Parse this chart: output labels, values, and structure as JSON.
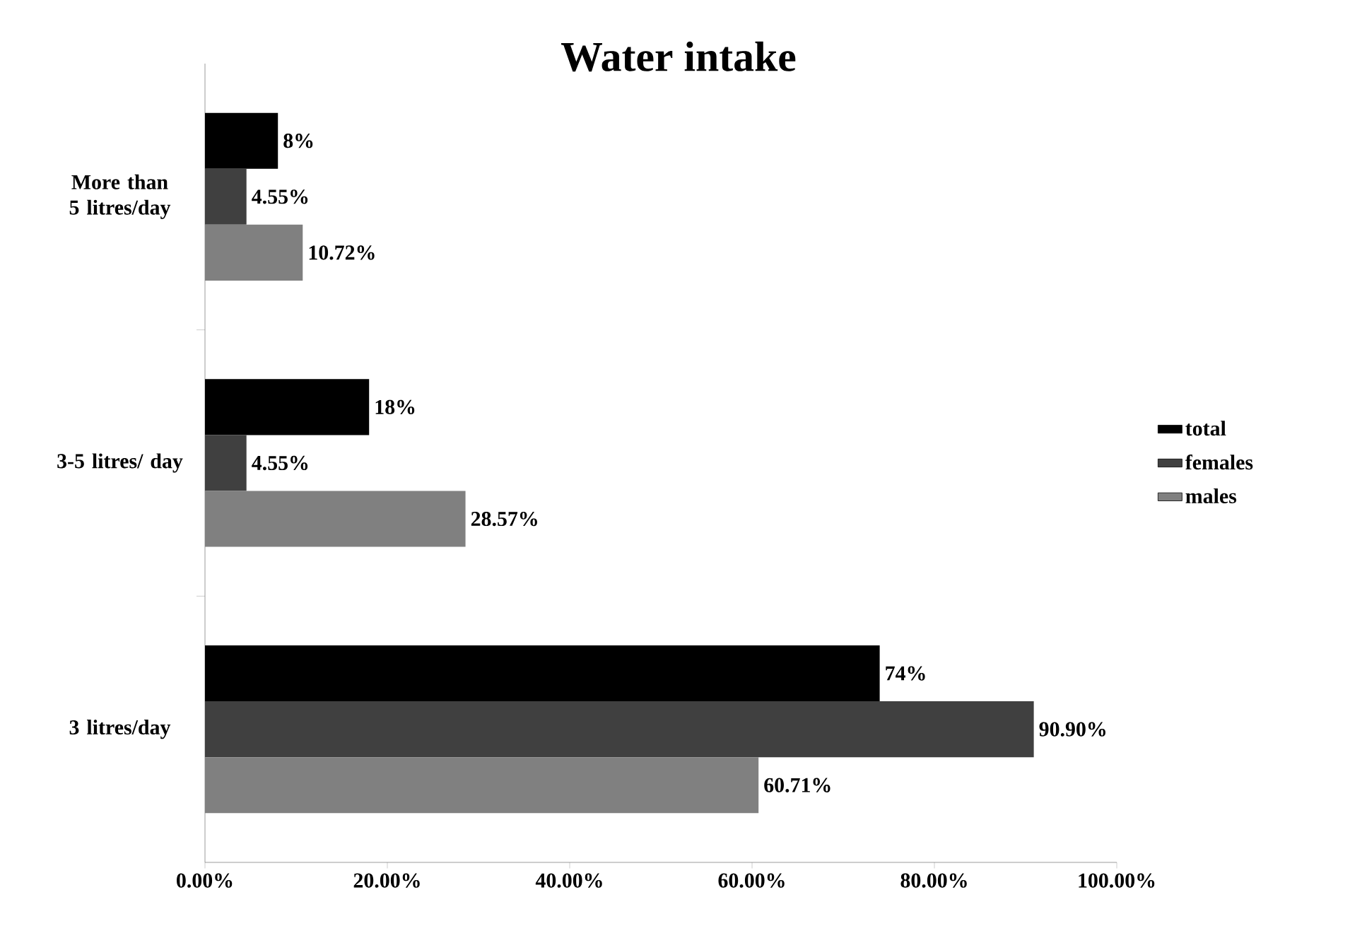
{
  "chart_data": {
    "type": "bar",
    "orientation": "horizontal",
    "title": "Water intake",
    "categories": [
      "More than 5 litres/day",
      "3-5 litres/ day",
      "3 litres/day"
    ],
    "series": [
      {
        "name": "total",
        "color": "#000000",
        "values": [
          8,
          18,
          74
        ],
        "value_labels": [
          "8%",
          "18%",
          "74%"
        ]
      },
      {
        "name": "females",
        "color": "#404040",
        "values": [
          4.55,
          4.55,
          90.9
        ],
        "value_labels": [
          "4.55%",
          "4.55%",
          "90.90%"
        ]
      },
      {
        "name": "males",
        "color": "#808080",
        "values": [
          10.72,
          28.57,
          60.71
        ],
        "value_labels": [
          "10.72%",
          "28.57%",
          "60.71%"
        ]
      }
    ],
    "xlim": [
      0,
      100
    ],
    "xticks": [
      {
        "value": 0,
        "label": "0.00%"
      },
      {
        "value": 20,
        "label": "20.00%"
      },
      {
        "value": 40,
        "label": "40.00%"
      },
      {
        "value": 60,
        "label": "60.00%"
      },
      {
        "value": 80,
        "label": "80.00%"
      },
      {
        "value": 100,
        "label": "100.00%"
      }
    ],
    "legend": "right"
  }
}
